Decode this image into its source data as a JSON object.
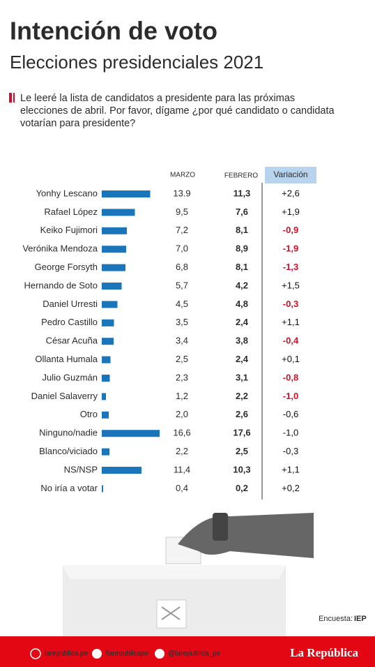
{
  "chart_data": {
    "type": "bar",
    "title": "Intención de voto",
    "subtitle": "Elecciones presidenciales 2021",
    "question": [
      "Le leeré la lista de candidatos a presidente para las próximas",
      "elecciones de abril. Por favor, dígame ¿por qué candidato o candidata",
      "votarían para presidente?"
    ],
    "categories": [
      "Yonhy Lescano",
      "Rafael López",
      "Keiko Fujimori",
      "Verónika Mendoza",
      "George Forsyth",
      "Hernando de Soto",
      "Daniel Urresti",
      "Pedro Castillo",
      "César Acuña",
      "Ollanta Humala",
      "Julio Guzmán",
      "Daniel Salaverry",
      "Otro",
      "Ninguno/nadie",
      "Blanco/viciado",
      "NS/NSP",
      "No iría a votar"
    ],
    "series": [
      {
        "name": "MARZO",
        "color": "#1b75bb",
        "values": [
          13.9,
          9.5,
          7.2,
          7.0,
          6.8,
          5.7,
          4.5,
          3.5,
          3.4,
          2.5,
          2.3,
          1.2,
          2.0,
          16.6,
          2.2,
          11.4,
          0.4
        ],
        "value_labels": [
          "13.9",
          "9,5",
          "7,2",
          "7,0",
          "6,8",
          "5,7",
          "4,5",
          "3,5",
          "3,4",
          "2,5",
          "2,3",
          "1,2",
          "2,0",
          "16,6",
          "2,2",
          "11,4",
          "0,4"
        ]
      }
    ],
    "columns": [
      {
        "name": "FEBRERO",
        "values": [
          11.3,
          7.6,
          8.1,
          8.9,
          8.1,
          4.2,
          4.8,
          2.4,
          3.8,
          2.4,
          3.1,
          2.2,
          2.6,
          17.6,
          2.5,
          10.3,
          0.2
        ],
        "value_labels": [
          "11,3",
          "7,6",
          "8,1",
          "8,9",
          "8,1",
          "4,2",
          "4,8",
          "2,4",
          "3,8",
          "2,4",
          "3,1",
          "2,2",
          "2,6",
          "17,6",
          "2,5",
          "10,3",
          "0,2"
        ]
      },
      {
        "name": "Variación",
        "values": [
          2.6,
          1.9,
          -0.9,
          -1.9,
          -1.3,
          1.5,
          -0.3,
          1.1,
          -0.4,
          0.1,
          -0.8,
          -1.0,
          -0.6,
          -1.0,
          -0.3,
          1.1,
          0.2
        ],
        "value_labels": [
          "+2,6",
          "+1,9",
          "-0,9",
          "-1,9",
          "-1,3",
          "+1,5",
          "-0,3",
          "+1,1",
          "-0,4",
          "+0,1",
          "-0,8",
          "-1,0",
          "-0,6",
          "-1,0",
          "-0,3",
          "+1,1",
          "+0,2"
        ],
        "colors": [
          "#111",
          "#111",
          "#d0102a",
          "#d0102a",
          "#d0102a",
          "#111",
          "#d0102a",
          "#111",
          "#d0102a",
          "#111",
          "#d0102a",
          "#d0102a",
          "#111",
          "#111",
          "#111",
          "#111",
          "#111"
        ]
      }
    ],
    "source_label": "Encuesta:",
    "source": "IEP",
    "footer": {
      "web": "larepublica.pe",
      "facebook": "/larepublicape",
      "twitter": "@larepublica_pe",
      "brand": "La República"
    }
  }
}
